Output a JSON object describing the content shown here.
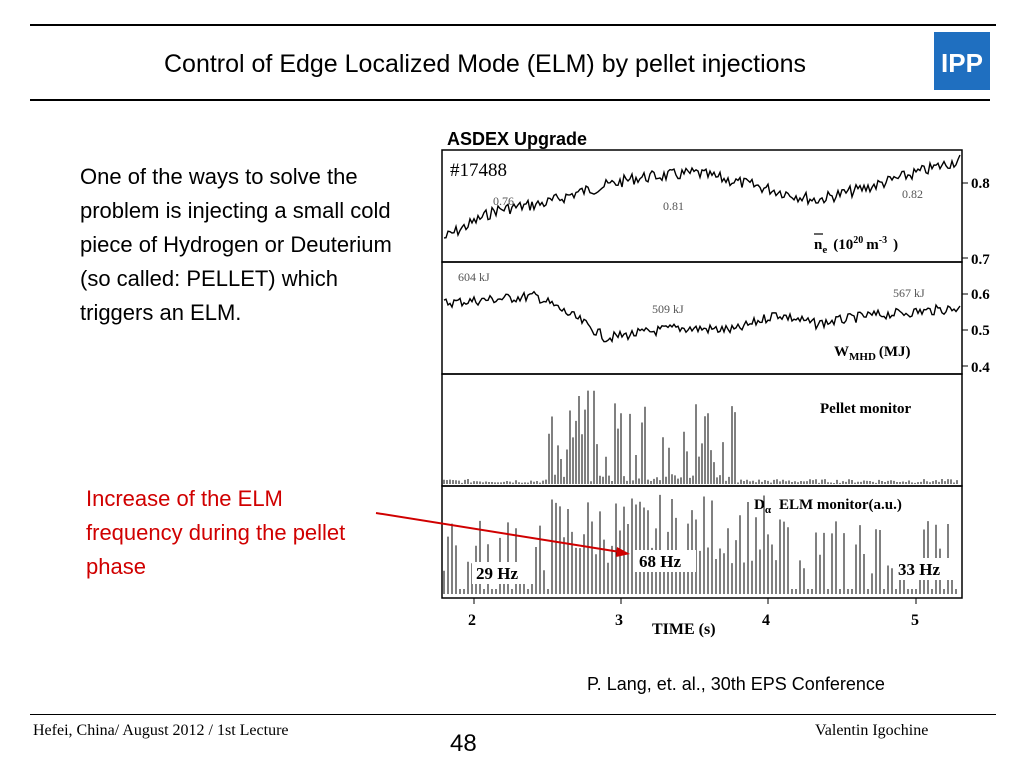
{
  "slide": {
    "title": "Control of Edge Localized Mode (ELM) by pellet injections",
    "logo_text": "IPP",
    "body_text": "One of the ways to solve the problem is injecting a small cold piece of Hydrogen or Deuterium (so called: PELLET) which triggers an ELM.",
    "annotation_text": "Increase of the ELM frequency during the pellet phase",
    "credit": "P. Lang, et. al., 30th EPS Conference",
    "footer_left": "Hefei, China/ August 2012 / 1st Lecture",
    "footer_right": "Valentin Igochine",
    "page_number": "48"
  },
  "figure": {
    "header": "ASDEX Upgrade",
    "shot": "#17488",
    "panels": {
      "density": {
        "label_main": "n",
        "label_sub": "e",
        "label_unit": "(10",
        "label_exp": "20",
        "label_unit2": "m",
        "label_exp2": "-3",
        "label_close": ")",
        "annotations": [
          "0.76",
          "0.81",
          "0.82"
        ],
        "yticks": [
          "0.8",
          "0.7"
        ]
      },
      "energy": {
        "label_main": "W",
        "label_sub": "MHD",
        "label_unit": "(MJ)",
        "annotations": [
          "604 kJ",
          "509 kJ",
          "567 kJ"
        ],
        "yticks": [
          "0.6",
          "0.5",
          "0.4"
        ]
      },
      "pellet": {
        "label": "Pellet monitor"
      },
      "elm": {
        "label_d": "D",
        "label_alpha": "α",
        "label_rest": "ELM monitor(a.u.)",
        "annotations": [
          "29 Hz",
          "68 Hz",
          "33 Hz"
        ]
      }
    },
    "xaxis": {
      "ticks": [
        "2",
        "3",
        "4",
        "5"
      ],
      "label": "TIME  (s)"
    },
    "colors": {
      "annotation_red": "#d00000",
      "logo_blue": "#1f6fc0"
    }
  }
}
